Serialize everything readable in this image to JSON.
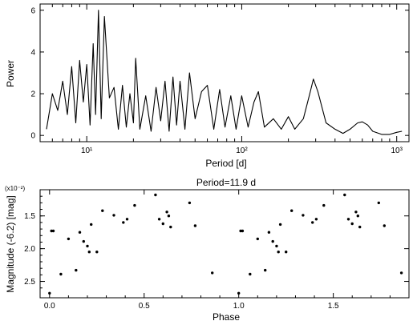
{
  "chart_data": [
    {
      "type": "line",
      "title": "",
      "xlabel": "Period [d]",
      "ylabel": "Power",
      "xscale": "log",
      "xlim": [
        5,
        1200
      ],
      "ylim": [
        -0.3,
        6.3
      ],
      "xticks": [
        "10¹",
        "10²",
        "10³"
      ],
      "yticks": [
        "0",
        "2",
        "4",
        "6"
      ],
      "grid": false,
      "series": [
        {
          "x": [
            5.5,
            6.0,
            6.5,
            7.0,
            7.5,
            8.0,
            8.5,
            9.0,
            9.5,
            10.0,
            10.5,
            11.0,
            11.4,
            11.9,
            12.4,
            13.0,
            14.0,
            15.0,
            16.0,
            17.0,
            18.0,
            19.0,
            20.0,
            20.7,
            22.0,
            24.0,
            26.0,
            28.0,
            30.0,
            32.0,
            34.0,
            36.0,
            38.0,
            40.0,
            43.0,
            46.0,
            50.0,
            55.0,
            60.0,
            66.0,
            72.0,
            78.0,
            85.0,
            92.0,
            100.0,
            110.0,
            120.0,
            128.0,
            140.0,
            160.0,
            180.0,
            200.0,
            220.0,
            250.0,
            275.0,
            290.0,
            310.0,
            350.0,
            400.0,
            450.0,
            500.0,
            560.0,
            600.0,
            650.0,
            700.0,
            800.0,
            900.0,
            1000.0,
            1080.0
          ],
          "values": [
            0.3,
            2.0,
            1.2,
            2.6,
            1.0,
            3.3,
            0.6,
            3.6,
            1.6,
            3.4,
            0.5,
            4.4,
            1.0,
            6.0,
            0.8,
            5.7,
            1.8,
            2.3,
            0.3,
            2.4,
            0.4,
            2.0,
            0.6,
            3.7,
            0.3,
            1.9,
            0.2,
            2.3,
            0.7,
            2.6,
            0.2,
            2.8,
            0.5,
            2.6,
            0.3,
            3.0,
            0.8,
            2.1,
            2.4,
            0.3,
            2.2,
            0.4,
            1.9,
            0.3,
            1.9,
            0.4,
            1.6,
            2.1,
            0.4,
            0.8,
            0.3,
            0.9,
            0.3,
            0.8,
            2.0,
            2.7,
            2.1,
            0.6,
            0.3,
            0.1,
            0.3,
            0.6,
            0.65,
            0.5,
            0.2,
            0.05,
            0.05,
            0.15,
            0.2
          ]
        }
      ]
    },
    {
      "type": "scatter",
      "title": "Period=11.9 d",
      "xlabel": "Phase",
      "ylabel": "Magnitude (-6.2) [mag]",
      "y_multiplier": "(x10⁻²)",
      "y_inverted": true,
      "xlim": [
        -0.05,
        1.9
      ],
      "ylim": [
        1.1,
        2.75
      ],
      "xticks": [
        "0.0",
        "0.5",
        "1.0",
        "1.5"
      ],
      "yticks": [
        "1.5",
        "2.0",
        "2.5"
      ],
      "grid": false,
      "series": [
        {
          "x": [
            0.0,
            0.01,
            0.02,
            0.06,
            0.1,
            0.14,
            0.16,
            0.18,
            0.2,
            0.21,
            0.22,
            0.25,
            0.28,
            0.34,
            0.39,
            0.41,
            0.45,
            0.56,
            0.58,
            0.6,
            0.62,
            0.63,
            0.64,
            0.74,
            0.77,
            0.86,
            1.0,
            1.01,
            1.02,
            1.06,
            1.1,
            1.14,
            1.16,
            1.18,
            1.2,
            1.21,
            1.22,
            1.25,
            1.28,
            1.34,
            1.39,
            1.41,
            1.45,
            1.56,
            1.58,
            1.6,
            1.62,
            1.63,
            1.64,
            1.74,
            1.77,
            1.86
          ],
          "values": [
            2.68,
            1.73,
            1.73,
            2.39,
            1.85,
            2.33,
            1.75,
            1.89,
            1.96,
            2.05,
            1.63,
            2.05,
            1.42,
            1.49,
            1.6,
            1.55,
            1.34,
            1.18,
            1.55,
            1.62,
            1.44,
            1.5,
            1.67,
            1.3,
            1.65,
            2.37,
            2.68,
            1.73,
            1.73,
            2.39,
            1.85,
            2.33,
            1.75,
            1.89,
            1.96,
            2.05,
            1.63,
            2.05,
            1.42,
            1.49,
            1.6,
            1.55,
            1.34,
            1.18,
            1.55,
            1.62,
            1.44,
            1.5,
            1.67,
            1.3,
            1.65,
            2.37
          ]
        }
      ]
    }
  ]
}
